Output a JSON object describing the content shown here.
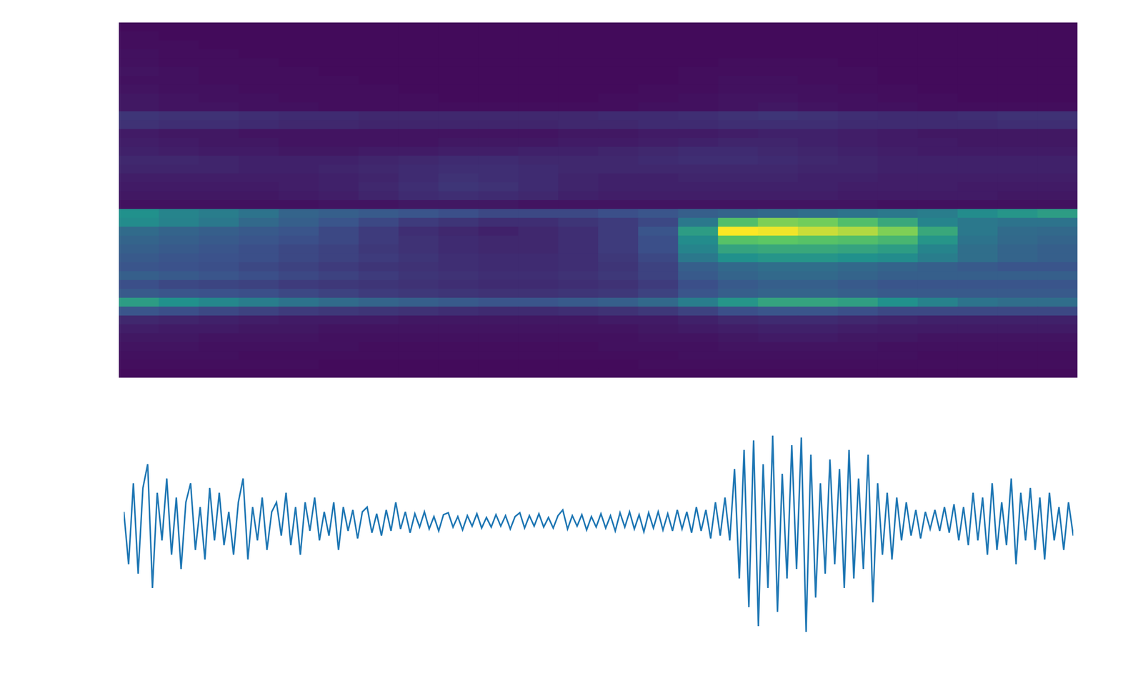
{
  "chart_data": [
    {
      "type": "heatmap",
      "tick_labels": false,
      "zlim": [
        0,
        100
      ],
      "cells": [
        [
          3,
          3,
          3,
          3,
          3,
          3,
          3,
          3,
          3,
          3,
          3,
          3,
          3,
          3,
          3,
          3,
          3,
          3,
          3,
          3,
          3,
          3,
          3,
          3
        ],
        [
          4,
          3,
          3,
          3,
          3,
          3,
          3,
          3,
          3,
          3,
          3,
          3,
          3,
          3,
          3,
          3,
          3,
          3,
          3,
          3,
          3,
          3,
          3,
          3
        ],
        [
          4,
          4,
          3,
          3,
          3,
          3,
          3,
          3,
          3,
          3,
          3,
          3,
          3,
          3,
          3,
          3,
          3,
          3,
          3,
          3,
          3,
          3,
          3,
          3
        ],
        [
          5,
          4,
          4,
          3,
          3,
          3,
          3,
          3,
          3,
          3,
          3,
          3,
          3,
          3,
          3,
          3,
          3,
          3,
          3,
          3,
          3,
          3,
          3,
          3
        ],
        [
          5,
          4,
          4,
          4,
          3,
          3,
          3,
          3,
          3,
          3,
          3,
          3,
          3,
          3,
          3,
          4,
          4,
          4,
          3,
          3,
          3,
          3,
          3,
          3
        ],
        [
          6,
          5,
          4,
          4,
          4,
          3,
          3,
          3,
          3,
          3,
          3,
          3,
          3,
          3,
          4,
          4,
          4,
          4,
          4,
          3,
          3,
          3,
          3,
          3
        ],
        [
          5,
          5,
          4,
          4,
          4,
          4,
          3,
          3,
          3,
          3,
          3,
          3,
          3,
          3,
          4,
          5,
          5,
          4,
          4,
          3,
          3,
          3,
          3,
          3
        ],
        [
          6,
          5,
          5,
          4,
          4,
          4,
          4,
          3,
          3,
          3,
          3,
          3,
          3,
          4,
          4,
          5,
          5,
          5,
          4,
          4,
          3,
          3,
          3,
          3
        ],
        [
          7,
          6,
          5,
          5,
          4,
          4,
          4,
          4,
          3,
          3,
          3,
          3,
          4,
          4,
          5,
          6,
          6,
          5,
          5,
          4,
          4,
          3,
          3,
          3
        ],
        [
          7,
          6,
          6,
          5,
          5,
          4,
          4,
          4,
          4,
          4,
          4,
          4,
          4,
          5,
          5,
          6,
          7,
          6,
          5,
          5,
          4,
          4,
          4,
          4
        ],
        [
          16,
          15,
          15,
          14,
          13,
          13,
          12,
          12,
          12,
          12,
          12,
          12,
          13,
          13,
          14,
          15,
          16,
          15,
          14,
          13,
          13,
          14,
          15,
          15
        ],
        [
          15,
          14,
          14,
          13,
          12,
          12,
          11,
          11,
          11,
          11,
          11,
          12,
          12,
          13,
          13,
          14,
          14,
          14,
          13,
          13,
          13,
          13,
          14,
          14
        ],
        [
          8,
          7,
          7,
          6,
          6,
          6,
          6,
          6,
          6,
          6,
          6,
          7,
          7,
          8,
          8,
          9,
          10,
          10,
          9,
          8,
          7,
          7,
          7,
          7
        ],
        [
          9,
          8,
          7,
          7,
          6,
          6,
          6,
          6,
          7,
          7,
          7,
          8,
          8,
          9,
          10,
          11,
          11,
          10,
          9,
          8,
          8,
          7,
          7,
          7
        ],
        [
          10,
          9,
          8,
          8,
          7,
          7,
          8,
          8,
          9,
          9,
          10,
          10,
          11,
          12,
          13,
          13,
          12,
          11,
          10,
          9,
          8,
          8,
          8,
          8
        ],
        [
          12,
          12,
          11,
          10,
          10,
          10,
          11,
          12,
          13,
          13,
          12,
          12,
          12,
          13,
          14,
          14,
          13,
          12,
          11,
          10,
          10,
          10,
          10,
          10
        ],
        [
          11,
          11,
          11,
          10,
          10,
          11,
          12,
          13,
          14,
          14,
          13,
          12,
          12,
          12,
          12,
          12,
          12,
          11,
          11,
          10,
          10,
          10,
          10,
          10
        ],
        [
          9,
          9,
          9,
          9,
          9,
          10,
          11,
          13,
          15,
          14,
          13,
          11,
          10,
          10,
          11,
          11,
          11,
          10,
          10,
          9,
          9,
          9,
          9,
          9
        ],
        [
          8,
          8,
          8,
          8,
          9,
          10,
          12,
          14,
          16,
          15,
          13,
          11,
          10,
          10,
          10,
          10,
          10,
          10,
          9,
          9,
          9,
          8,
          8,
          8
        ],
        [
          7,
          7,
          7,
          7,
          8,
          9,
          11,
          13,
          14,
          13,
          12,
          10,
          9,
          9,
          9,
          9,
          9,
          9,
          8,
          8,
          8,
          8,
          7,
          7
        ],
        [
          5,
          5,
          5,
          5,
          5,
          6,
          6,
          7,
          7,
          7,
          6,
          6,
          6,
          6,
          6,
          6,
          6,
          6,
          6,
          5,
          5,
          5,
          5,
          5
        ],
        [
          50,
          45,
          42,
          38,
          32,
          30,
          28,
          26,
          24,
          22,
          22,
          22,
          24,
          26,
          30,
          32,
          34,
          36,
          38,
          40,
          42,
          48,
          52,
          55
        ],
        [
          48,
          44,
          40,
          34,
          30,
          26,
          22,
          18,
          16,
          14,
          14,
          16,
          18,
          22,
          40,
          70,
          80,
          78,
          70,
          60,
          45,
          40,
          38,
          38
        ],
        [
          35,
          32,
          30,
          28,
          26,
          22,
          18,
          14,
          12,
          10,
          12,
          14,
          18,
          26,
          55,
          100,
          98,
          92,
          88,
          80,
          60,
          40,
          35,
          34
        ],
        [
          32,
          30,
          28,
          26,
          24,
          22,
          18,
          15,
          13,
          12,
          12,
          14,
          18,
          24,
          48,
          72,
          74,
          72,
          70,
          66,
          52,
          38,
          34,
          32
        ],
        [
          30,
          28,
          26,
          24,
          22,
          20,
          17,
          15,
          13,
          12,
          12,
          14,
          18,
          24,
          45,
          58,
          60,
          60,
          58,
          55,
          45,
          36,
          32,
          30
        ],
        [
          28,
          26,
          25,
          24,
          22,
          20,
          18,
          16,
          14,
          13,
          13,
          14,
          17,
          22,
          40,
          50,
          52,
          52,
          50,
          48,
          42,
          36,
          32,
          30
        ],
        [
          26,
          25,
          24,
          22,
          20,
          18,
          16,
          15,
          14,
          13,
          13,
          14,
          16,
          20,
          30,
          34,
          36,
          36,
          34,
          32,
          30,
          28,
          26,
          26
        ],
        [
          30,
          28,
          26,
          24,
          22,
          20,
          18,
          16,
          15,
          14,
          14,
          15,
          17,
          20,
          28,
          32,
          34,
          34,
          32,
          30,
          30,
          30,
          30,
          30
        ],
        [
          24,
          22,
          21,
          20,
          18,
          17,
          16,
          15,
          14,
          13,
          13,
          14,
          15,
          18,
          24,
          28,
          30,
          30,
          28,
          26,
          26,
          26,
          26,
          26
        ],
        [
          28,
          26,
          25,
          24,
          22,
          20,
          18,
          17,
          16,
          15,
          15,
          16,
          17,
          20,
          26,
          30,
          32,
          32,
          30,
          28,
          28,
          28,
          28,
          28
        ],
        [
          55,
          50,
          46,
          42,
          38,
          35,
          32,
          30,
          28,
          26,
          26,
          28,
          30,
          34,
          42,
          52,
          58,
          58,
          56,
          50,
          44,
          38,
          36,
          36
        ],
        [
          26,
          24,
          22,
          20,
          18,
          17,
          16,
          15,
          14,
          13,
          13,
          14,
          15,
          17,
          20,
          24,
          26,
          26,
          24,
          22,
          22,
          22,
          22,
          22
        ],
        [
          12,
          11,
          10,
          9,
          8,
          8,
          8,
          7,
          7,
          7,
          7,
          7,
          8,
          8,
          10,
          12,
          13,
          13,
          12,
          11,
          10,
          10,
          10,
          10
        ],
        [
          9,
          8,
          8,
          7,
          7,
          6,
          6,
          6,
          6,
          6,
          6,
          6,
          6,
          7,
          8,
          9,
          10,
          10,
          9,
          8,
          8,
          8,
          8,
          8
        ],
        [
          7,
          7,
          6,
          6,
          6,
          5,
          5,
          5,
          5,
          5,
          5,
          5,
          5,
          6,
          6,
          7,
          8,
          8,
          7,
          7,
          6,
          6,
          6,
          6
        ],
        [
          6,
          6,
          5,
          5,
          5,
          5,
          4,
          4,
          4,
          4,
          4,
          4,
          5,
          5,
          5,
          6,
          6,
          6,
          6,
          5,
          5,
          5,
          5,
          5
        ],
        [
          5,
          5,
          5,
          4,
          4,
          4,
          4,
          4,
          4,
          4,
          4,
          4,
          4,
          4,
          5,
          5,
          5,
          5,
          5,
          5,
          4,
          4,
          4,
          4
        ],
        [
          4,
          4,
          4,
          4,
          4,
          3,
          3,
          3,
          3,
          3,
          3,
          3,
          3,
          4,
          4,
          4,
          4,
          4,
          4,
          4,
          4,
          4,
          4,
          4
        ],
        [
          3,
          3,
          3,
          3,
          3,
          3,
          3,
          3,
          3,
          3,
          3,
          3,
          3,
          3,
          3,
          3,
          3,
          3,
          3,
          3,
          3,
          3,
          3,
          3
        ]
      ]
    },
    {
      "type": "line",
      "tick_labels": false,
      "color": "#1f77b4",
      "xlim": [
        0,
        199
      ],
      "ylim": [
        -1.3,
        1.3
      ],
      "x": [
        0,
        1,
        2,
        3,
        4,
        5,
        6,
        7,
        8,
        9,
        10,
        11,
        12,
        13,
        14,
        15,
        16,
        17,
        18,
        19,
        20,
        21,
        22,
        23,
        24,
        25,
        26,
        27,
        28,
        29,
        30,
        31,
        32,
        33,
        34,
        35,
        36,
        37,
        38,
        39,
        40,
        41,
        42,
        43,
        44,
        45,
        46,
        47,
        48,
        49,
        50,
        51,
        52,
        53,
        54,
        55,
        56,
        57,
        58,
        59,
        60,
        61,
        62,
        63,
        64,
        65,
        66,
        67,
        68,
        69,
        70,
        71,
        72,
        73,
        74,
        75,
        76,
        77,
        78,
        79,
        80,
        81,
        82,
        83,
        84,
        85,
        86,
        87,
        88,
        89,
        90,
        91,
        92,
        93,
        94,
        95,
        96,
        97,
        98,
        99,
        100,
        101,
        102,
        103,
        104,
        105,
        106,
        107,
        108,
        109,
        110,
        111,
        112,
        113,
        114,
        115,
        116,
        117,
        118,
        119,
        120,
        121,
        122,
        123,
        124,
        125,
        126,
        127,
        128,
        129,
        130,
        131,
        132,
        133,
        134,
        135,
        136,
        137,
        138,
        139,
        140,
        141,
        142,
        143,
        144,
        145,
        146,
        147,
        148,
        149,
        150,
        151,
        152,
        153,
        154,
        155,
        156,
        157,
        158,
        159,
        160,
        161,
        162,
        163,
        164,
        165,
        166,
        167,
        168,
        169,
        170,
        171,
        172,
        173,
        174,
        175,
        176,
        177,
        178,
        179,
        180,
        181,
        182,
        183,
        184,
        185,
        186,
        187,
        188,
        189,
        190,
        191,
        192,
        193,
        194,
        195,
        196,
        197,
        198,
        199
      ],
      "values": [
        0.1,
        -0.45,
        0.4,
        -0.55,
        0.35,
        0.6,
        -0.7,
        0.3,
        -0.2,
        0.45,
        -0.35,
        0.25,
        -0.5,
        0.2,
        0.4,
        -0.3,
        0.15,
        -0.4,
        0.35,
        -0.2,
        0.3,
        -0.25,
        0.1,
        -0.35,
        0.2,
        0.45,
        -0.4,
        0.15,
        -0.2,
        0.25,
        -0.3,
        0.1,
        0.2,
        -0.15,
        0.3,
        -0.25,
        0.15,
        -0.35,
        0.2,
        -0.1,
        0.25,
        -0.2,
        0.1,
        -0.15,
        0.2,
        -0.3,
        0.15,
        -0.1,
        0.12,
        -0.18,
        0.1,
        0.15,
        -0.12,
        0.08,
        -0.15,
        0.12,
        -0.1,
        0.2,
        -0.08,
        0.1,
        -0.12,
        0.08,
        -0.06,
        0.1,
        -0.08,
        0.05,
        -0.1,
        0.07,
        0.09,
        -0.06,
        0.05,
        -0.09,
        0.06,
        -0.05,
        0.08,
        -0.07,
        0.04,
        -0.06,
        0.07,
        -0.05,
        0.06,
        -0.08,
        0.05,
        0.09,
        -0.07,
        0.06,
        -0.05,
        0.08,
        -0.06,
        0.04,
        -0.07,
        0.06,
        0.12,
        -0.08,
        0.06,
        -0.05,
        0.07,
        -0.09,
        0.05,
        -0.06,
        0.08,
        -0.07,
        0.06,
        -0.1,
        0.09,
        -0.06,
        0.1,
        -0.08,
        0.07,
        -0.11,
        0.09,
        -0.07,
        0.1,
        -0.09,
        0.08,
        -0.1,
        0.12,
        -0.08,
        0.1,
        -0.12,
        0.15,
        -0.1,
        0.12,
        -0.18,
        0.2,
        -0.15,
        0.25,
        -0.2,
        0.55,
        -0.6,
        0.75,
        -0.9,
        0.85,
        -1.1,
        0.6,
        -0.7,
        0.9,
        -0.95,
        0.5,
        -0.6,
        0.8,
        -0.5,
        0.88,
        -1.16,
        0.7,
        -0.8,
        0.4,
        -0.55,
        0.65,
        -0.45,
        0.55,
        -0.7,
        0.75,
        -0.6,
        0.45,
        -0.5,
        0.7,
        -0.85,
        0.4,
        -0.35,
        0.3,
        -0.4,
        0.25,
        -0.2,
        0.2,
        -0.15,
        0.12,
        -0.18,
        0.1,
        -0.08,
        0.12,
        -0.1,
        0.15,
        -0.12,
        0.18,
        -0.2,
        0.15,
        -0.25,
        0.3,
        -0.2,
        0.25,
        -0.35,
        0.4,
        -0.3,
        0.2,
        -0.25,
        0.45,
        -0.45,
        0.3,
        -0.2,
        0.35,
        -0.3,
        0.25,
        -0.4,
        0.3,
        -0.2,
        0.15,
        -0.3,
        0.2,
        -0.15
      ]
    }
  ]
}
